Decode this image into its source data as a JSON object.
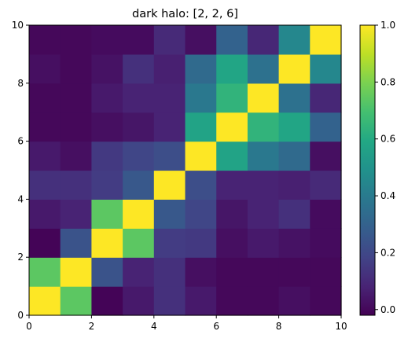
{
  "chart_data": {
    "type": "heatmap",
    "title": "dark halo: [2, 2, 6]",
    "xlabel": "",
    "ylabel": "",
    "xlim": [
      0,
      10
    ],
    "ylim": [
      0,
      10
    ],
    "x_ticks": [
      "0",
      "2",
      "4",
      "6",
      "8",
      "10"
    ],
    "y_ticks": [
      "0",
      "2",
      "4",
      "6",
      "8",
      "10"
    ],
    "colorbar": {
      "range": [
        -0.02,
        1.0
      ],
      "ticks": [
        "0.0",
        "0.2",
        "0.4",
        "0.6",
        "0.8",
        "1.0"
      ],
      "colormap": "viridis"
    },
    "rows_bottom_to_top": [
      [
        1.0,
        0.74,
        -0.01,
        0.05,
        0.12,
        0.05,
        0.0,
        0.0,
        0.02,
        0.0
      ],
      [
        0.74,
        1.0,
        0.24,
        0.08,
        0.12,
        0.02,
        0.0,
        0.0,
        0.0,
        0.0
      ],
      [
        -0.01,
        0.24,
        1.0,
        0.74,
        0.16,
        0.15,
        0.02,
        0.05,
        0.03,
        0.01
      ],
      [
        0.05,
        0.08,
        0.74,
        1.0,
        0.26,
        0.19,
        0.04,
        0.08,
        0.12,
        0.01
      ],
      [
        0.12,
        0.12,
        0.16,
        0.26,
        1.0,
        0.22,
        0.08,
        0.08,
        0.07,
        0.1
      ],
      [
        0.05,
        0.02,
        0.15,
        0.19,
        0.22,
        1.0,
        0.57,
        0.39,
        0.33,
        0.02
      ],
      [
        0.0,
        0.0,
        0.02,
        0.04,
        0.08,
        0.57,
        1.0,
        0.64,
        0.58,
        0.3
      ],
      [
        0.0,
        0.0,
        0.05,
        0.08,
        0.08,
        0.39,
        0.64,
        1.0,
        0.36,
        0.09
      ],
      [
        0.02,
        0.0,
        0.03,
        0.12,
        0.07,
        0.33,
        0.58,
        0.36,
        1.0,
        0.45
      ],
      [
        0.0,
        0.0,
        0.01,
        0.01,
        0.1,
        0.02,
        0.3,
        0.09,
        0.45,
        1.0
      ]
    ]
  }
}
